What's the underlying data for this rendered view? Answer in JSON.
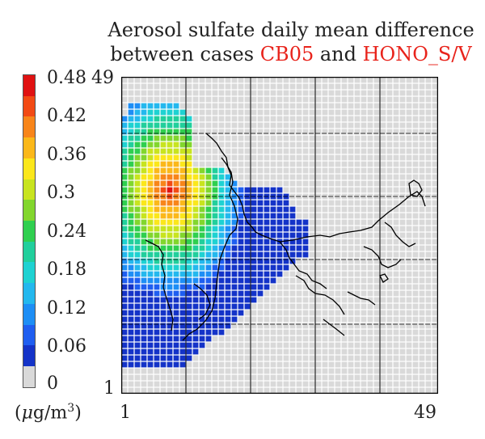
{
  "title": {
    "line1": "Aerosol sulfate daily mean difference",
    "line2_prefix": "between cases ",
    "case_a": "CB05",
    "line2_mid": " and ",
    "case_b": "HONO_S/V"
  },
  "colorbar": {
    "ticks": [
      "0.48",
      "0.42",
      "0.36",
      "0.3",
      "0.24",
      "0.18",
      "0.12",
      "0.06",
      "0"
    ],
    "unit_prefix": "(",
    "unit_mu": "μ",
    "unit_rest": "g/m",
    "unit_sup": "3",
    "unit_suffix": ")",
    "colors": [
      "#d9d9d9",
      "#1433c8",
      "#1f5ef0",
      "#1d8ef5",
      "#23b8ee",
      "#1ed2d2",
      "#21cf9c",
      "#2fcf4f",
      "#82d62d",
      "#c8e41f",
      "#fbe71b",
      "#fbb81a",
      "#f8851a",
      "#f24a14",
      "#e01212"
    ]
  },
  "map": {
    "grid_size": 49,
    "x_label_min": "1",
    "x_label_max": "49",
    "y_label_min": "1",
    "y_label_max": "49"
  }
}
